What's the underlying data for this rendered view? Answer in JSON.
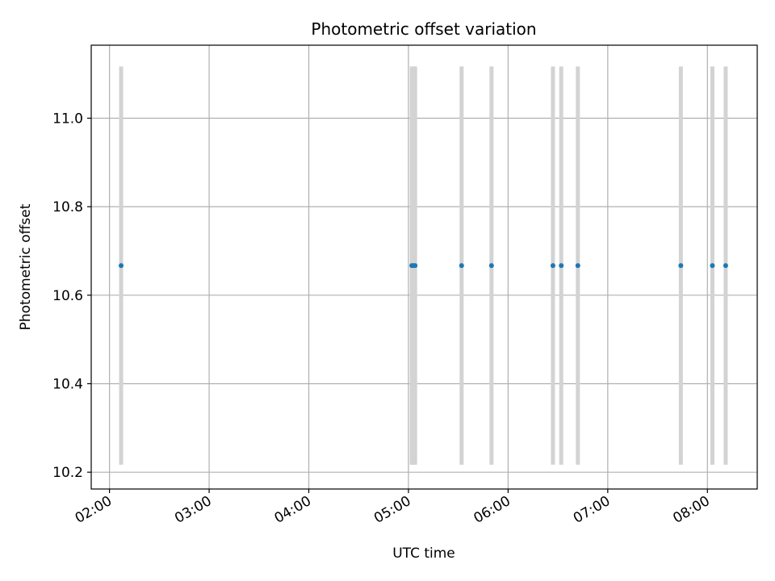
{
  "chart_data": {
    "type": "scatter",
    "title": "Photometric offset variation",
    "xlabel": "UTC time",
    "ylabel": "Photometric offset",
    "xlim": [
      "01:49",
      "08:30"
    ],
    "ylim": [
      10.162,
      11.165
    ],
    "xticks": [
      "02:00",
      "03:00",
      "04:00",
      "05:00",
      "06:00",
      "07:00",
      "08:00"
    ],
    "yticks": [
      "10.2",
      "10.4",
      "10.6",
      "10.8",
      "11.0"
    ],
    "grid": true,
    "colors": {
      "points": "#1f77b4",
      "errorbars": "#d3d3d3",
      "grid": "#b0b0b0"
    },
    "series": [
      {
        "x": [
          "02:07",
          "05:02",
          "05:03",
          "05:04",
          "05:32",
          "05:50",
          "06:27",
          "06:32",
          "06:42",
          "07:44",
          "08:03",
          "08:11"
        ],
        "y": [
          10.667,
          10.667,
          10.667,
          10.667,
          10.667,
          10.667,
          10.667,
          10.667,
          10.667,
          10.667,
          10.667,
          10.667
        ],
        "yerr": [
          0.45,
          0.45,
          0.45,
          0.45,
          0.45,
          0.45,
          0.45,
          0.45,
          0.45,
          0.45,
          0.45,
          0.45
        ]
      }
    ]
  }
}
